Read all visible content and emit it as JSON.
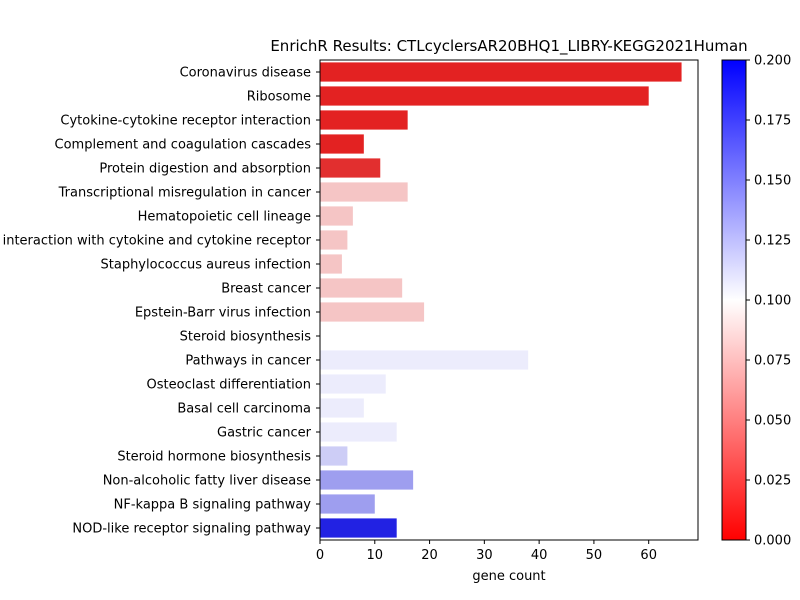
{
  "chart_data": {
    "type": "bar",
    "orientation": "horizontal",
    "title": "EnrichR Results: CTLcyclersAR20BHQ1_LIBRY-KEGG2021Human",
    "xlabel": "gene count",
    "ylabel": "",
    "xlim": [
      0,
      69
    ],
    "xticks": [
      0,
      10,
      20,
      30,
      40,
      50,
      60
    ],
    "grid": false,
    "colorbar": {
      "range": [
        0.0,
        0.2
      ],
      "ticks": [
        "0.000",
        "0.025",
        "0.050",
        "0.075",
        "0.100",
        "0.125",
        "0.150",
        "0.175",
        "0.200"
      ],
      "colors": [
        "#ff0000",
        "#ffffff",
        "#0000ff"
      ]
    },
    "categories": [
      "Coronavirus disease",
      "Ribosome",
      "Cytokine-cytokine receptor interaction",
      "Complement and coagulation cascades",
      "Protein digestion and absorption",
      "Transcriptional misregulation in cancer",
      "Hematopoietic cell lineage",
      "Viral protein interaction with cytokine and cytokine receptor",
      "Staphylococcus aureus infection",
      "Breast cancer",
      "Epstein-Barr virus infection",
      "Steroid biosynthesis",
      "Pathways in cancer",
      "Osteoclast differentiation",
      "Basal cell carcinoma",
      "Gastric cancer",
      "Steroid hormone biosynthesis",
      "Non-alcoholic fatty liver disease",
      "NF-kappa B signaling pathway",
      "NOD-like receptor signaling pathway"
    ],
    "values": [
      66,
      60,
      16,
      8,
      11,
      16,
      6,
      5,
      4,
      15,
      19,
      0,
      38,
      12,
      8,
      14,
      5,
      17,
      10,
      14
    ],
    "colors": [
      "#e32222",
      "#e32222",
      "#e32222",
      "#e32222",
      "#e22f2f",
      "#f5c5c5",
      "#f5c5c5",
      "#f5c5c5",
      "#f5c5c5",
      "#f5c5c5",
      "#f5c5c5",
      "#ffffff",
      "#ececfc",
      "#ececfc",
      "#ececfc",
      "#ececfc",
      "#cdcdf6",
      "#9e9eef",
      "#9e9eef",
      "#2222e3"
    ]
  }
}
